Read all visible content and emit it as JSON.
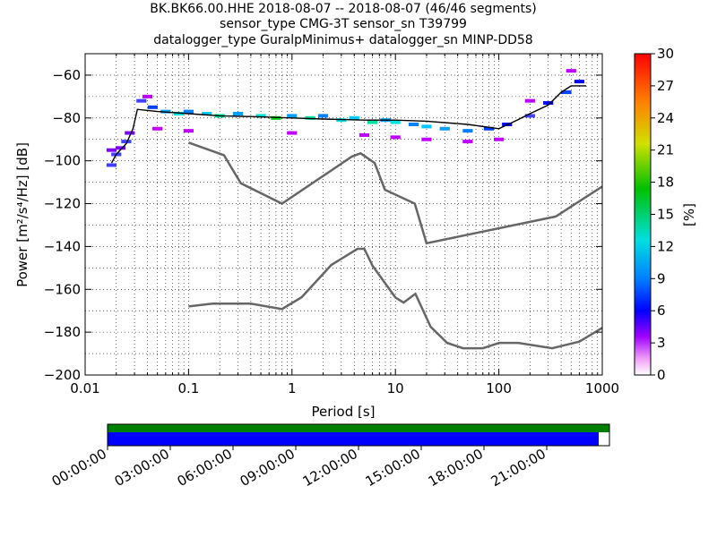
{
  "title_lines": [
    "BK.BK66.00.HHE   2018-08-07 -- 2018-08-07  (46/46 segments)",
    "sensor_type CMG-3T sensor_sn T39799",
    "datalogger_type GuralpMinimus+ datalogger_sn MINP-DD58"
  ],
  "colorbar": {
    "label": "[%]",
    "ticks": [
      "0",
      "3",
      "6",
      "9",
      "12",
      "15",
      "18",
      "21",
      "24",
      "27",
      "30"
    ],
    "range": [
      0,
      30
    ]
  },
  "coverage_ticks": [
    "00:00:00",
    "03:00:00",
    "06:00:00",
    "09:00:00",
    "12:00:00",
    "15:00:00",
    "18:00:00",
    "21:00:00"
  ],
  "coverage_colors": {
    "top": "#008000",
    "bottom": "#0000ff"
  },
  "chart_data": {
    "type": "heatmap",
    "xlabel": "Period [s]",
    "ylabel": "Power [m²/s⁴/Hz] [dB]",
    "xscale": "log",
    "xlim": [
      0.01,
      1000
    ],
    "ylim": [
      -200,
      -50
    ],
    "xticks": [
      {
        "v": 0.01,
        "label": "0.01"
      },
      {
        "v": 0.1,
        "label": "0.1"
      },
      {
        "v": 1,
        "label": "1"
      },
      {
        "v": 10,
        "label": "10"
      },
      {
        "v": 100,
        "label": "100"
      },
      {
        "v": 1000,
        "label": "1000"
      }
    ],
    "yticks": [
      -60,
      -80,
      -100,
      -120,
      -140,
      -160,
      -180,
      -200
    ],
    "grid": true,
    "nhnm": [
      [
        0.1,
        -168
      ],
      [
        0.17,
        -166.7
      ],
      [
        0.4,
        -166.7
      ],
      [
        0.8,
        -169.2
      ],
      [
        1.24,
        -163.7
      ],
      [
        2.4,
        -148.6
      ],
      [
        4.3,
        -141.1
      ],
      [
        5.0,
        -141.1
      ],
      [
        6.0,
        -149
      ],
      [
        10,
        -163.8
      ],
      [
        12,
        -166.2
      ],
      [
        15.6,
        -162.1
      ],
      [
        21.9,
        -177.5
      ],
      [
        31.6,
        -185
      ],
      [
        45,
        -187.5
      ],
      [
        70,
        -187.5
      ],
      [
        101,
        -185
      ],
      [
        154,
        -185
      ],
      [
        328,
        -187.5
      ],
      [
        600,
        -184.4
      ],
      [
        1000,
        -178
      ]
    ],
    "nlnm": [
      [
        0.1,
        -91.5
      ],
      [
        0.22,
        -97.4
      ],
      [
        0.32,
        -110.5
      ],
      [
        0.8,
        -120
      ],
      [
        3.8,
        -98
      ],
      [
        4.6,
        -96.5
      ],
      [
        6.3,
        -101
      ],
      [
        7.9,
        -113.5
      ],
      [
        15.4,
        -120
      ],
      [
        20,
        -138.5
      ],
      [
        354.8,
        -126
      ],
      [
        1000,
        -112
      ]
    ],
    "mean": [
      [
        0.018,
        -101
      ],
      [
        0.02,
        -97
      ],
      [
        0.025,
        -92
      ],
      [
        0.029,
        -85
      ],
      [
        0.032,
        -76
      ],
      [
        0.05,
        -77
      ],
      [
        0.1,
        -78
      ],
      [
        0.2,
        -79
      ],
      [
        0.5,
        -79.5
      ],
      [
        1,
        -80
      ],
      [
        2,
        -80.5
      ],
      [
        5,
        -81
      ],
      [
        10,
        -81
      ],
      [
        20,
        -81.5
      ],
      [
        50,
        -83
      ],
      [
        100,
        -85
      ],
      [
        150,
        -81
      ],
      [
        200,
        -78
      ],
      [
        300,
        -74
      ],
      [
        400,
        -68
      ],
      [
        500,
        -65
      ],
      [
        700,
        -65
      ]
    ],
    "density": [
      [
        0.018,
        -95,
        3
      ],
      [
        0.018,
        -102,
        4
      ],
      [
        0.02,
        -97,
        4
      ],
      [
        0.022,
        -94,
        3
      ],
      [
        0.025,
        -91,
        4
      ],
      [
        0.027,
        -87,
        3
      ],
      [
        0.035,
        -72,
        4
      ],
      [
        0.045,
        -75,
        6
      ],
      [
        0.06,
        -77,
        8
      ],
      [
        0.08,
        -78,
        10
      ],
      [
        0.1,
        -77,
        7
      ],
      [
        0.15,
        -78,
        9
      ],
      [
        0.2,
        -79,
        11
      ],
      [
        0.3,
        -78,
        8
      ],
      [
        0.5,
        -79,
        10
      ],
      [
        0.7,
        -80,
        12
      ],
      [
        1,
        -79,
        8
      ],
      [
        1.5,
        -80,
        11
      ],
      [
        2,
        -79,
        7
      ],
      [
        3,
        -81,
        10
      ],
      [
        4,
        -80,
        9
      ],
      [
        6,
        -82,
        11
      ],
      [
        8,
        -81,
        8
      ],
      [
        10,
        -82,
        10
      ],
      [
        15,
        -83,
        7
      ],
      [
        20,
        -84,
        9
      ],
      [
        30,
        -85,
        8
      ],
      [
        50,
        -86,
        7
      ],
      [
        80,
        -85,
        6
      ],
      [
        120,
        -83,
        5
      ],
      [
        200,
        -79,
        4
      ],
      [
        300,
        -73,
        5
      ],
      [
        450,
        -68,
        6
      ],
      [
        600,
        -63,
        5
      ],
      [
        0.04,
        -70,
        2
      ],
      [
        0.05,
        -85,
        2
      ],
      [
        0.1,
        -86,
        2
      ],
      [
        1,
        -87,
        2
      ],
      [
        5,
        -88,
        2
      ],
      [
        10,
        -89,
        2
      ],
      [
        20,
        -90,
        2
      ],
      [
        50,
        -91,
        2
      ],
      [
        100,
        -90,
        2
      ],
      [
        200,
        -72,
        2
      ],
      [
        500,
        -58,
        2
      ]
    ]
  }
}
